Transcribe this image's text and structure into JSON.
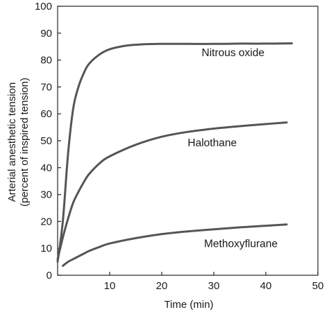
{
  "chart_data": {
    "type": "line",
    "title": "",
    "xlabel": "Time (min)",
    "ylabel_lines": [
      "Arterial anesthetic tension",
      "(percent of inspired tension)"
    ],
    "xlim": [
      0,
      50
    ],
    "ylim": [
      0,
      100
    ],
    "x_ticks": [
      "10",
      "20",
      "30",
      "40",
      "50"
    ],
    "y_ticks": [
      "0",
      "10",
      "20",
      "30",
      "40",
      "50",
      "60",
      "70",
      "80",
      "90",
      "100"
    ],
    "grid": false,
    "legend": "none",
    "series": [
      {
        "name": "Nitrous oxide",
        "color": "#555555",
        "points": [
          [
            0,
            5
          ],
          [
            1,
            20
          ],
          [
            2,
            45
          ],
          [
            3,
            62
          ],
          [
            4,
            70
          ],
          [
            5,
            75
          ],
          [
            6,
            78.5
          ],
          [
            8,
            82
          ],
          [
            10,
            84
          ],
          [
            13,
            85.3
          ],
          [
            16,
            85.8
          ],
          [
            20,
            86
          ],
          [
            25,
            86
          ],
          [
            30,
            86
          ],
          [
            35,
            86.1
          ],
          [
            40,
            86.1
          ],
          [
            45,
            86.2
          ]
        ]
      },
      {
        "name": "Halothane",
        "color": "#555555",
        "points": [
          [
            0,
            6
          ],
          [
            1,
            14
          ],
          [
            2,
            21
          ],
          [
            3,
            27
          ],
          [
            4,
            31
          ],
          [
            5,
            34.5
          ],
          [
            6,
            37.5
          ],
          [
            8,
            41.5
          ],
          [
            10,
            44.2
          ],
          [
            15,
            48.5
          ],
          [
            20,
            51.5
          ],
          [
            25,
            53.3
          ],
          [
            30,
            54.5
          ],
          [
            35,
            55.4
          ],
          [
            40,
            56.2
          ],
          [
            44,
            56.8
          ]
        ]
      },
      {
        "name": "Methoxyflurane",
        "color": "#555555",
        "points": [
          [
            1,
            3.5
          ],
          [
            2,
            5
          ],
          [
            3,
            6
          ],
          [
            4,
            7
          ],
          [
            5,
            8
          ],
          [
            6,
            9
          ],
          [
            8,
            10.5
          ],
          [
            10,
            11.8
          ],
          [
            15,
            13.8
          ],
          [
            20,
            15.3
          ],
          [
            25,
            16.3
          ],
          [
            30,
            17.1
          ],
          [
            35,
            17.8
          ],
          [
            40,
            18.4
          ],
          [
            44,
            18.9
          ]
        ]
      }
    ]
  }
}
